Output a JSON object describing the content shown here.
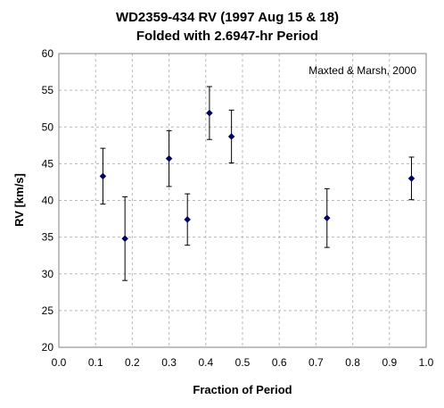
{
  "chart_data": {
    "type": "scatter",
    "title": [
      "WD2359-434 RV (1997 Aug 15 & 18)",
      "Folded with 2.6947-hr Period"
    ],
    "xlabel": "Fraction of Period",
    "ylabel": "RV [km/s]",
    "xlim": [
      0.0,
      1.0
    ],
    "ylim": [
      20,
      60
    ],
    "xticks": [
      "0.0",
      "0.1",
      "0.2",
      "0.3",
      "0.4",
      "0.5",
      "0.6",
      "0.7",
      "0.8",
      "0.9",
      "1.0"
    ],
    "yticks": [
      "20",
      "25",
      "30",
      "35",
      "40",
      "45",
      "50",
      "55",
      "60"
    ],
    "grid": true,
    "annotation": "Maxted & Marsh, 2000",
    "marker_color": "#000066",
    "points": [
      {
        "x": 0.12,
        "y": 43.3,
        "err": 3.8
      },
      {
        "x": 0.18,
        "y": 34.8,
        "err": 5.7
      },
      {
        "x": 0.3,
        "y": 45.7,
        "err": 3.8
      },
      {
        "x": 0.35,
        "y": 37.4,
        "err": 3.5
      },
      {
        "x": 0.41,
        "y": 51.9,
        "err": 3.6
      },
      {
        "x": 0.47,
        "y": 48.7,
        "err": 3.6
      },
      {
        "x": 0.73,
        "y": 37.6,
        "err": 4.0
      },
      {
        "x": 0.96,
        "y": 43.0,
        "err": 2.9
      }
    ]
  }
}
